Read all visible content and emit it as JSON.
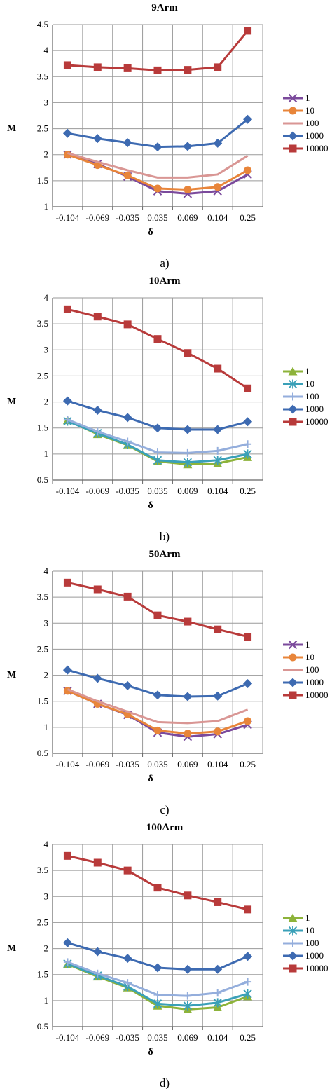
{
  "chart_data": [
    {
      "type": "line",
      "title": "9Arm",
      "xlabel": "δ",
      "ylabel": "M",
      "caption": "a)",
      "categories": [
        "-0.104",
        "-0.069",
        "-0.035",
        "0.035",
        "0.069",
        "0.104",
        "0.25"
      ],
      "ylim": [
        1,
        4.5
      ],
      "yticks": [
        "1",
        "1.5",
        "2",
        "2.5",
        "3",
        "3.5",
        "4",
        "4.5"
      ],
      "legend_position": "right",
      "series": [
        {
          "name": "1",
          "color": "#7b4a9c",
          "marker": "x",
          "values": [
            2.0,
            1.82,
            1.58,
            1.3,
            1.25,
            1.3,
            1.62
          ]
        },
        {
          "name": "10",
          "color": "#e8853a",
          "marker": "circle",
          "values": [
            2.0,
            1.8,
            1.6,
            1.35,
            1.33,
            1.38,
            1.7
          ]
        },
        {
          "name": "100",
          "color": "#d99694",
          "marker": "line",
          "values": [
            2.03,
            1.86,
            1.7,
            1.56,
            1.56,
            1.62,
            1.98
          ]
        },
        {
          "name": "1000",
          "color": "#3d6ab1",
          "marker": "diamond",
          "values": [
            2.41,
            2.31,
            2.23,
            2.15,
            2.16,
            2.22,
            2.68
          ]
        },
        {
          "name": "10000",
          "color": "#b83a3a",
          "marker": "square",
          "values": [
            3.72,
            3.68,
            3.66,
            3.62,
            3.63,
            3.68,
            4.38
          ]
        }
      ]
    },
    {
      "type": "line",
      "title": "10Arm",
      "xlabel": "δ",
      "ylabel": "M",
      "caption": "b)",
      "categories": [
        "-0.104",
        "-0.069",
        "-0.035",
        "0.035",
        "0.069",
        "0.104",
        "0.25"
      ],
      "ylim": [
        0.5,
        4
      ],
      "yticks": [
        "0.5",
        "1",
        "1.5",
        "2",
        "2.5",
        "3",
        "3.5",
        "4"
      ],
      "legend_position": "right",
      "series": [
        {
          "name": "1",
          "color": "#8db33a",
          "marker": "triangle",
          "values": [
            1.65,
            1.38,
            1.17,
            0.86,
            0.8,
            0.82,
            0.94
          ]
        },
        {
          "name": "10",
          "color": "#3aa0b8",
          "marker": "star",
          "values": [
            1.63,
            1.4,
            1.18,
            0.88,
            0.84,
            0.88,
            1.0
          ]
        },
        {
          "name": "100",
          "color": "#94aedc",
          "marker": "plus",
          "values": [
            1.66,
            1.43,
            1.24,
            1.03,
            1.02,
            1.06,
            1.19
          ]
        },
        {
          "name": "1000",
          "color": "#3d6ab1",
          "marker": "diamond",
          "values": [
            2.02,
            1.84,
            1.7,
            1.5,
            1.47,
            1.47,
            1.62
          ]
        },
        {
          "name": "10000",
          "color": "#b83a3a",
          "marker": "square",
          "values": [
            3.78,
            3.64,
            3.49,
            3.21,
            2.94,
            2.64,
            2.26
          ]
        }
      ]
    },
    {
      "type": "line",
      "title": "50Arm",
      "xlabel": "δ",
      "ylabel": "M",
      "caption": "c)",
      "categories": [
        "-0.104",
        "-0.069",
        "-0.035",
        "0.035",
        "0.069",
        "0.104",
        "0.25"
      ],
      "ylim": [
        0.5,
        4
      ],
      "yticks": [
        "0.5",
        "1",
        "1.5",
        "2",
        "2.5",
        "3",
        "3.5",
        "4"
      ],
      "legend_position": "right",
      "series": [
        {
          "name": "1",
          "color": "#7b4a9c",
          "marker": "x",
          "values": [
            1.7,
            1.45,
            1.24,
            0.9,
            0.82,
            0.87,
            1.05
          ]
        },
        {
          "name": "10",
          "color": "#e8853a",
          "marker": "circle",
          "values": [
            1.7,
            1.45,
            1.25,
            0.94,
            0.88,
            0.92,
            1.12
          ]
        },
        {
          "name": "100",
          "color": "#d99694",
          "marker": "line",
          "values": [
            1.73,
            1.5,
            1.3,
            1.1,
            1.08,
            1.12,
            1.34
          ]
        },
        {
          "name": "1000",
          "color": "#3d6ab1",
          "marker": "diamond",
          "values": [
            2.1,
            1.94,
            1.8,
            1.62,
            1.59,
            1.6,
            1.84
          ]
        },
        {
          "name": "10000",
          "color": "#b83a3a",
          "marker": "square",
          "values": [
            3.78,
            3.65,
            3.51,
            3.15,
            3.03,
            2.88,
            2.74
          ]
        }
      ]
    },
    {
      "type": "line",
      "title": "100Arm",
      "xlabel": "δ",
      "ylabel": "M",
      "caption": "d)",
      "categories": [
        "-0.104",
        "-0.069",
        "-0.035",
        "0.035",
        "0.069",
        "0.104",
        "0.25"
      ],
      "ylim": [
        0.5,
        4
      ],
      "yticks": [
        "0.5",
        "1",
        "1.5",
        "2",
        "2.5",
        "3",
        "3.5",
        "4"
      ],
      "legend_position": "right",
      "series": [
        {
          "name": "1",
          "color": "#8db33a",
          "marker": "triangle",
          "values": [
            1.7,
            1.46,
            1.25,
            0.9,
            0.83,
            0.87,
            1.08
          ]
        },
        {
          "name": "10",
          "color": "#3aa0b8",
          "marker": "star",
          "values": [
            1.71,
            1.48,
            1.27,
            0.94,
            0.9,
            0.96,
            1.13
          ]
        },
        {
          "name": "100",
          "color": "#94aedc",
          "marker": "plus",
          "values": [
            1.74,
            1.52,
            1.34,
            1.11,
            1.09,
            1.15,
            1.36
          ]
        },
        {
          "name": "1000",
          "color": "#3d6ab1",
          "marker": "diamond",
          "values": [
            2.11,
            1.94,
            1.81,
            1.63,
            1.6,
            1.6,
            1.85
          ]
        },
        {
          "name": "10000",
          "color": "#b83a3a",
          "marker": "square",
          "values": [
            3.78,
            3.65,
            3.5,
            3.17,
            3.02,
            2.89,
            2.75
          ]
        }
      ]
    }
  ]
}
